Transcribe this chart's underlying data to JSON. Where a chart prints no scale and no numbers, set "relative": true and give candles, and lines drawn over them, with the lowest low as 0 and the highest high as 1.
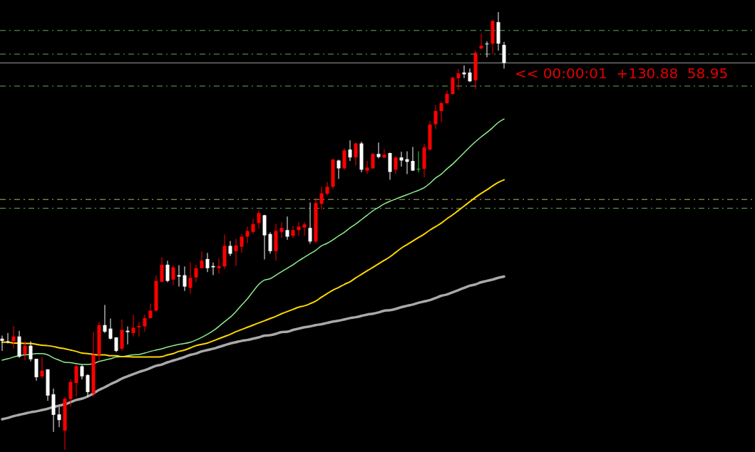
{
  "chart_data": {
    "type": "candlestick",
    "relative": true,
    "categories": [
      null,
      null,
      null,
      null,
      null,
      null,
      null,
      null,
      null,
      null,
      null,
      null,
      null,
      null,
      null,
      null,
      null,
      null,
      null,
      null,
      null,
      null,
      null,
      null,
      null,
      null,
      null,
      null,
      null,
      null,
      null,
      null,
      null,
      null,
      null,
      null,
      null,
      null,
      null,
      null,
      null,
      null,
      null,
      null,
      null,
      null,
      null,
      null,
      null,
      null,
      null,
      null,
      null,
      null,
      null,
      null,
      null,
      null,
      null,
      null,
      null,
      null,
      null,
      null,
      null,
      null,
      null,
      null,
      null,
      null,
      null,
      null,
      null,
      null,
      null,
      null,
      null,
      null,
      null,
      null,
      null,
      null,
      null,
      null,
      null,
      null,
      null,
      null,
      null
    ],
    "ohlc": [
      [
        0.254,
        0.261,
        0.226,
        0.249
      ],
      [
        0.248,
        0.267,
        0.243,
        0.246
      ],
      [
        0.248,
        0.283,
        0.231,
        0.259
      ],
      [
        0.259,
        0.272,
        0.21,
        0.213
      ],
      [
        0.218,
        0.248,
        0.205,
        0.238
      ],
      [
        0.238,
        0.248,
        0.202,
        0.207
      ],
      [
        0.208,
        0.208,
        0.158,
        0.166
      ],
      [
        0.168,
        0.212,
        0.163,
        0.181
      ],
      [
        0.184,
        0.184,
        0.112,
        0.124
      ],
      [
        0.127,
        0.14,
        0.041,
        0.08
      ],
      [
        0.081,
        0.098,
        0.052,
        0.068
      ],
      [
        0.044,
        0.121,
        0,
        0.117
      ],
      [
        0.116,
        0.161,
        0.099,
        0.155
      ],
      [
        0.153,
        0.195,
        0.122,
        0.191
      ],
      [
        0.191,
        0.194,
        0.161,
        0.168
      ],
      [
        0.171,
        0.173,
        0.121,
        0.132
      ],
      [
        0.129,
        0.269,
        0.122,
        0.217
      ],
      [
        0.217,
        0.292,
        0.202,
        0.285
      ],
      [
        0.285,
        0.331,
        0.267,
        0.27
      ],
      [
        0.277,
        0.3,
        0.252,
        0.254
      ],
      [
        0.257,
        0.257,
        0.223,
        0.226
      ],
      [
        0.231,
        0.298,
        0.226,
        0.274
      ],
      [
        0.272,
        0.282,
        0.241,
        0.269
      ],
      [
        0.267,
        0.309,
        0.259,
        0.279
      ],
      [
        0.28,
        0.292,
        0.259,
        0.283
      ],
      [
        0.282,
        0.309,
        0.27,
        0.301
      ],
      [
        0.301,
        0.334,
        0.3,
        0.318
      ],
      [
        0.318,
        0.399,
        0.316,
        0.386
      ],
      [
        0.384,
        0.44,
        0.383,
        0.423
      ],
      [
        0.423,
        0.432,
        0.383,
        0.386
      ],
      [
        0.389,
        0.422,
        0.376,
        0.417
      ],
      [
        0.399,
        0.422,
        0.373,
        0.396
      ],
      [
        0.399,
        0.419,
        0.363,
        0.373
      ],
      [
        0.37,
        0.428,
        0.357,
        0.393
      ],
      [
        0.394,
        0.423,
        0.383,
        0.415
      ],
      [
        0.415,
        0.453,
        0.415,
        0.432
      ],
      [
        0.436,
        0.45,
        0.406,
        0.415
      ],
      [
        0.42,
        0.428,
        0.399,
        0.417
      ],
      [
        0.415,
        0.438,
        0.402,
        0.42
      ],
      [
        0.419,
        0.492,
        0.414,
        0.466
      ],
      [
        0.466,
        0.477,
        0.443,
        0.448
      ],
      [
        0.454,
        0.482,
        0.42,
        0.467
      ],
      [
        0.464,
        0.493,
        0.45,
        0.487
      ],
      [
        0.487,
        0.51,
        0.472,
        0.5
      ],
      [
        0.498,
        0.528,
        0.493,
        0.516
      ],
      [
        0.518,
        0.547,
        0.505,
        0.541
      ],
      [
        0.536,
        0.537,
        0.435,
        0.49
      ],
      [
        0.493,
        0.497,
        0.448,
        0.454
      ],
      [
        0.454,
        0.516,
        0.432,
        0.5
      ],
      [
        0.498,
        0.52,
        0.484,
        0.507
      ],
      [
        0.502,
        0.533,
        0.48,
        0.487
      ],
      [
        0.489,
        0.511,
        0.484,
        0.502
      ],
      [
        0.502,
        0.521,
        0.489,
        0.51
      ],
      [
        0.508,
        0.52,
        0.489,
        0.515
      ],
      [
        0.507,
        0.565,
        0.471,
        0.476
      ],
      [
        0.476,
        0.575,
        0.472,
        0.564
      ],
      [
        0.562,
        0.601,
        0.549,
        0.586
      ],
      [
        0.585,
        0.612,
        0.581,
        0.601
      ],
      [
        0.601,
        0.666,
        0.596,
        0.663
      ],
      [
        0.661,
        0.663,
        0.619,
        0.643
      ],
      [
        0.643,
        0.689,
        0.64,
        0.684
      ],
      [
        0.686,
        0.707,
        0.66,
        0.668
      ],
      [
        0.668,
        0.702,
        0.65,
        0.7
      ],
      [
        0.7,
        0.704,
        0.634,
        0.64
      ],
      [
        0.638,
        0.66,
        0.63,
        0.645
      ],
      [
        0.643,
        0.679,
        0.642,
        0.676
      ],
      [
        0.676,
        0.702,
        0.666,
        0.669
      ],
      [
        0.668,
        0.687,
        0.666,
        0.674
      ],
      [
        0.678,
        0.679,
        0.617,
        0.635
      ],
      [
        0.64,
        0.671,
        0.63,
        0.668
      ],
      [
        0.668,
        0.681,
        0.647,
        0.661
      ],
      [
        0.664,
        0.682,
        0.63,
        0.658
      ],
      [
        0.66,
        0.692,
        0.637,
        0.638
      ],
      [
        0.642,
        0.682,
        0.634,
        0.642
      ],
      [
        0.642,
        0.699,
        0.622,
        0.691
      ],
      [
        0.686,
        0.751,
        0.684,
        0.743
      ],
      [
        0.744,
        0.788,
        0.733,
        0.774
      ],
      [
        0.774,
        0.795,
        0.749,
        0.792
      ],
      [
        0.792,
        0.821,
        0.79,
        0.813
      ],
      [
        0.813,
        0.853,
        0.811,
        0.85
      ],
      [
        0.849,
        0.87,
        0.822,
        0.86
      ],
      [
        0.862,
        0.878,
        0.849,
        0.858
      ],
      [
        0.862,
        0.871,
        0.84,
        0.842
      ],
      [
        0.844,
        0.912,
        0.824,
        0.907
      ],
      [
        0.917,
        0.951,
        0.915,
        0.923
      ],
      [
        0.928,
        0.933,
        0.897,
        0.927
      ],
      [
        0.928,
        0.982,
        0.904,
        0.98
      ],
      [
        0.977,
        1,
        0.912,
        0.928
      ],
      [
        0.925,
        0.932,
        0.871,
        0.884
      ]
    ],
    "colors": [
      "#ffffff",
      "#ffffff",
      "#ff0000",
      "#ffffff",
      "#ff0000",
      "#ffffff",
      "#ffffff",
      "#ff0000",
      "#ffffff",
      "#ffffff",
      "#ffffff",
      "#ff0000",
      "#ff0000",
      "#ff0000",
      "#ffffff",
      "#ffffff",
      "#ff0000",
      "#ff0000",
      "#ffffff",
      "#ffffff",
      "#ffffff",
      "#ff0000",
      "#ffffff",
      "#ff0000",
      "#ff0000",
      "#ff0000",
      "#ff0000",
      "#ff0000",
      "#ff0000",
      "#ffffff",
      "#ff0000",
      "#ffffff",
      "#ffffff",
      "#ff0000",
      "#ff0000",
      "#ff0000",
      "#ffffff",
      "#ffffff",
      "#ff0000",
      "#ff0000",
      "#ffffff",
      "#ff0000",
      "#ff0000",
      "#ff0000",
      "#ff0000",
      "#ff0000",
      "#ffffff",
      "#ffffff",
      "#ff0000",
      "#ff0000",
      "#ffffff",
      "#ff0000",
      "#ff0000",
      "#ff0000",
      "#ffffff",
      "#ff0000",
      "#ff0000",
      "#ff0000",
      "#ff0000",
      "#ffffff",
      "#ff0000",
      "#ffffff",
      "#ff0000",
      "#ffffff",
      "#ff0000",
      "#ff0000",
      "#ffffff",
      "#ff0000",
      "#ffffff",
      "#ff0000",
      "#ffffff",
      "#ffffff",
      "#ffffff",
      "#32cd32",
      "#ff0000",
      "#ff0000",
      "#ff0000",
      "#ff0000",
      "#ff0000",
      "#ff0000",
      "#ff0000",
      "#ffffff",
      "#ffffff",
      "#ff0000",
      "#ff0000",
      "#ffffff",
      "#ff0000",
      "#ffffff",
      "#ffffff"
    ],
    "series": [
      {
        "type": "line",
        "color": "#90ee90",
        "values": [
          0.205,
          0.208,
          0.212,
          0.215,
          0.217,
          0.218,
          0.22,
          0.22,
          0.217,
          0.21,
          0.205,
          0.2,
          0.199,
          0.197,
          0.195,
          0.195,
          0.197,
          0.202,
          0.205,
          0.208,
          0.212,
          0.213,
          0.215,
          0.217,
          0.218,
          0.221,
          0.225,
          0.228,
          0.231,
          0.235,
          0.238,
          0.241,
          0.243,
          0.246,
          0.251,
          0.257,
          0.264,
          0.272,
          0.282,
          0.293,
          0.303,
          0.316,
          0.331,
          0.345,
          0.362,
          0.378,
          0.388,
          0.391,
          0.399,
          0.407,
          0.415,
          0.423,
          0.432,
          0.44,
          0.448,
          0.456,
          0.466,
          0.472,
          0.48,
          0.489,
          0.497,
          0.507,
          0.516,
          0.526,
          0.536,
          0.546,
          0.554,
          0.562,
          0.568,
          0.573,
          0.578,
          0.583,
          0.588,
          0.593,
          0.599,
          0.609,
          0.621,
          0.63,
          0.642,
          0.653,
          0.666,
          0.679,
          0.692,
          0.704,
          0.715,
          0.725,
          0.736,
          0.748,
          0.756
        ]
      },
      {
        "type": "line",
        "color": "#ffd700",
        "values": [
          0.246,
          0.246,
          0.244,
          0.244,
          0.243,
          0.243,
          0.241,
          0.239,
          0.238,
          0.236,
          0.233,
          0.231,
          0.228,
          0.225,
          0.221,
          0.22,
          0.218,
          0.217,
          0.217,
          0.215,
          0.215,
          0.213,
          0.213,
          0.212,
          0.212,
          0.212,
          0.212,
          0.212,
          0.213,
          0.217,
          0.22,
          0.225,
          0.228,
          0.233,
          0.238,
          0.241,
          0.244,
          0.249,
          0.254,
          0.259,
          0.264,
          0.27,
          0.275,
          0.28,
          0.285,
          0.29,
          0.295,
          0.3,
          0.305,
          0.311,
          0.316,
          0.321,
          0.326,
          0.329,
          0.334,
          0.34,
          0.349,
          0.357,
          0.365,
          0.371,
          0.378,
          0.384,
          0.393,
          0.401,
          0.409,
          0.417,
          0.425,
          0.433,
          0.441,
          0.451,
          0.461,
          0.469,
          0.477,
          0.485,
          0.493,
          0.502,
          0.51,
          0.518,
          0.528,
          0.537,
          0.547,
          0.557,
          0.567,
          0.577,
          0.586,
          0.594,
          0.603,
          0.611,
          0.617
        ]
      },
      {
        "type": "line",
        "color": "#a9a9a9",
        "values": [
          0.07,
          0.073,
          0.077,
          0.08,
          0.083,
          0.086,
          0.088,
          0.091,
          0.094,
          0.098,
          0.101,
          0.104,
          0.109,
          0.114,
          0.117,
          0.122,
          0.129,
          0.137,
          0.143,
          0.15,
          0.156,
          0.163,
          0.168,
          0.173,
          0.178,
          0.182,
          0.187,
          0.192,
          0.195,
          0.2,
          0.204,
          0.208,
          0.212,
          0.217,
          0.22,
          0.225,
          0.228,
          0.231,
          0.235,
          0.239,
          0.243,
          0.246,
          0.249,
          0.251,
          0.254,
          0.257,
          0.261,
          0.262,
          0.265,
          0.269,
          0.27,
          0.274,
          0.277,
          0.28,
          0.282,
          0.285,
          0.287,
          0.29,
          0.293,
          0.295,
          0.298,
          0.301,
          0.303,
          0.306,
          0.309,
          0.311,
          0.314,
          0.318,
          0.319,
          0.322,
          0.326,
          0.329,
          0.332,
          0.336,
          0.339,
          0.342,
          0.347,
          0.352,
          0.355,
          0.36,
          0.365,
          0.37,
          0.375,
          0.378,
          0.383,
          0.386,
          0.389,
          0.393,
          0.396
        ]
      }
    ],
    "ref_lines": [
      {
        "axis": "y",
        "value": 0.958,
        "color": "#5fae5f",
        "line_style": "dashed"
      },
      {
        "axis": "y",
        "value": 0.904,
        "color": "#5fae5f",
        "line_style": "dashed"
      },
      {
        "axis": "y",
        "value": 0.884,
        "color": "#a0a0a0",
        "line_style": "solid"
      },
      {
        "axis": "y",
        "value": 0.831,
        "color": "#5fae5f",
        "line_style": "dashed"
      },
      {
        "axis": "y",
        "value": 0.572,
        "color": "#b4b45a",
        "line_style": "dashed"
      },
      {
        "axis": "y",
        "value": 0.552,
        "color": "#5fae5f",
        "line_style": "dashed"
      }
    ],
    "annotations": [
      "<< 00:00:01  +130.88  58.95"
    ]
  }
}
